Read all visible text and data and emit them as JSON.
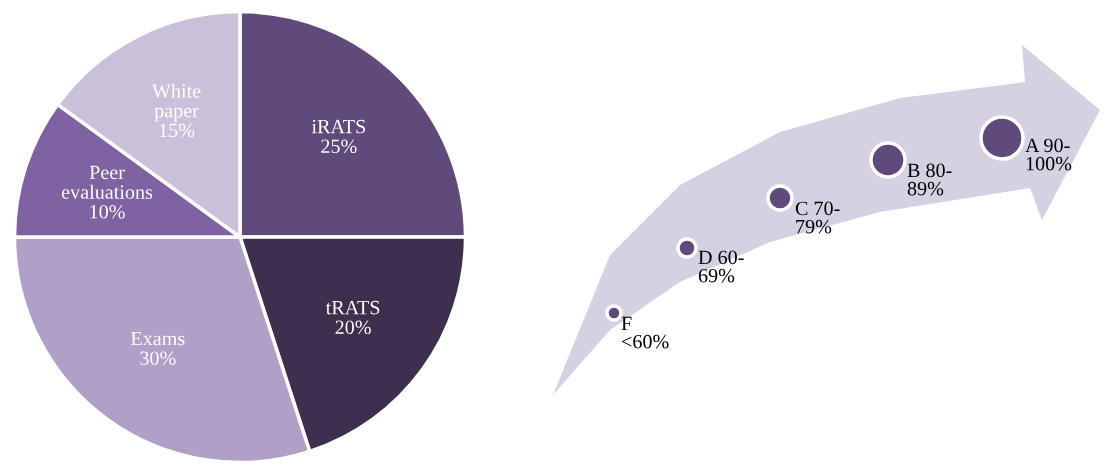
{
  "chart_data": {
    "type": "pie",
    "categories": [
      "iRATS",
      "tRATS",
      "Exams",
      "Peer\nevaluations",
      "White\npaper"
    ],
    "values": [
      25,
      20,
      30,
      10,
      15
    ],
    "colors": [
      "#5f4a7b",
      "#3f2f4f",
      "#b09fc6",
      "#7f62a2",
      "#cbc0da"
    ],
    "value_labels": [
      "25%",
      "20%",
      "30%",
      "10%",
      "15%"
    ],
    "annotations": [
      "F\n<60%",
      "D 60-\n69%",
      "C 70-\n79%",
      "B 80-\n89%",
      "A 90-\n100%"
    ]
  }
}
